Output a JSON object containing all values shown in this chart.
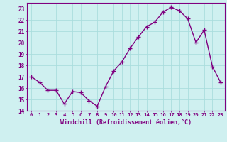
{
  "x": [
    0,
    1,
    2,
    3,
    4,
    5,
    6,
    7,
    8,
    9,
    10,
    11,
    12,
    13,
    14,
    15,
    16,
    17,
    18,
    19,
    20,
    21,
    22,
    23
  ],
  "y": [
    17.0,
    16.5,
    15.8,
    15.8,
    14.6,
    15.7,
    15.6,
    14.9,
    14.4,
    16.1,
    17.5,
    18.3,
    19.5,
    20.5,
    21.4,
    21.8,
    22.7,
    23.1,
    22.8,
    22.1,
    20.0,
    21.1,
    17.9,
    16.5
  ],
  "line_color": "#800080",
  "bg_color": "#cff0f0",
  "grid_color": "#aadddd",
  "ylim": [
    14,
    23.5
  ],
  "yticks": [
    14,
    15,
    16,
    17,
    18,
    19,
    20,
    21,
    22,
    23
  ],
  "xlabel": "Windchill (Refroidissement éolien,°C)",
  "xlabel_color": "#800080",
  "axis_color": "#800080",
  "tick_color": "#800080",
  "marker": "+",
  "marker_size": 4,
  "line_width": 1.0
}
